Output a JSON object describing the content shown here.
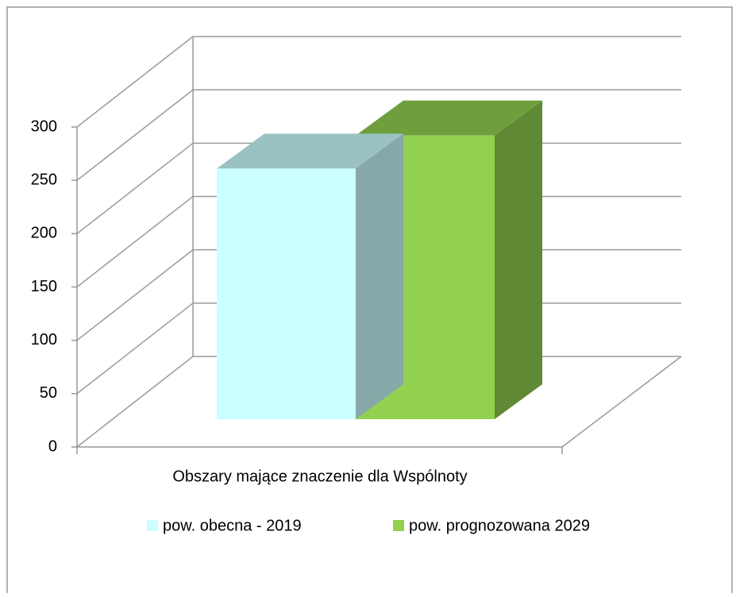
{
  "chart_data": {
    "type": "bar3d",
    "categories": [
      "Obszary mające znaczenie dla Wspólnoty"
    ],
    "series": [
      {
        "name": "pow. obecna - 2019",
        "color": "#ccffff",
        "values": [
          235
        ]
      },
      {
        "name": "pow. prognozowana 2029",
        "color": "#92d050",
        "values": [
          266
        ]
      }
    ],
    "ylim": [
      0,
      300
    ],
    "yticks": [
      0,
      50,
      100,
      150,
      200,
      250,
      300
    ],
    "grid": true,
    "legend": "bottom"
  }
}
